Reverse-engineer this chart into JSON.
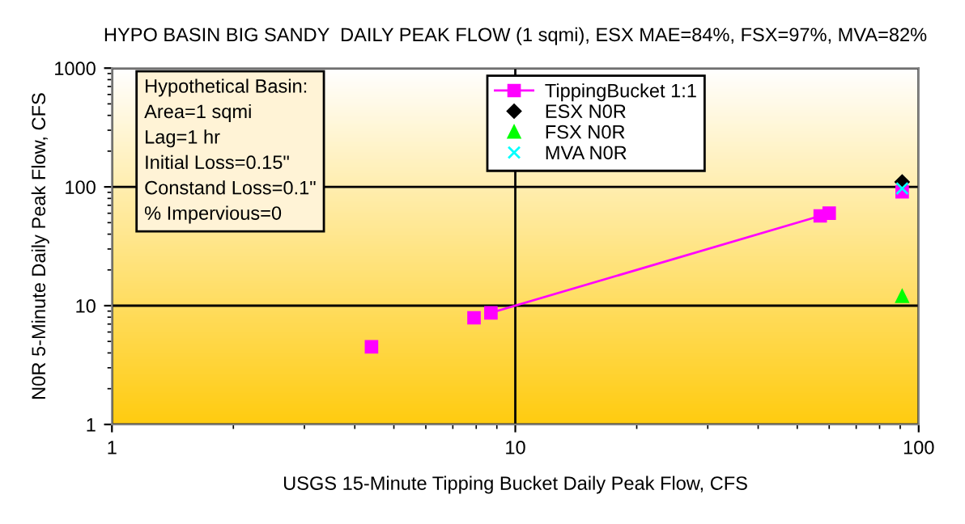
{
  "chart_data": {
    "type": "scatter",
    "title": "HYPO BASIN BIG SANDY  DAILY PEAK FLOW (1 sqmi), ESX MAE=84%, FSX=97%, MVA=82%",
    "xlabel": "USGS 15-Minute Tipping Bucket Daily Peak Flow, CFS",
    "ylabel": "N0R 5-Minute Daily Peak Flow, CFS",
    "annotations": [
      "Hypothetical Basin:\nArea=1 sqmi\nLag=1 hr\nInitial Loss=0.15\"\nConstand Loss=0.1\"\n% Impervious=0"
    ],
    "series": [
      {
        "name": "TippingBucket 1:1",
        "type": "line",
        "marker": "square",
        "color": "#ff00ff",
        "x": [
          8.7,
          57,
          60
        ],
        "values": [
          8.7,
          57,
          60
        ]
      },
      {
        "marker": "square",
        "color": "#ff00ff",
        "x": [
          4.4,
          7.9,
          91
        ],
        "values": [
          4.5,
          7.9,
          91
        ]
      },
      {
        "name": "ESX N0R",
        "marker": "diamond",
        "color": "#000000",
        "x": [
          91
        ],
        "values": [
          110
        ]
      },
      {
        "name": "FSX N0R",
        "marker": "triangle",
        "color": "#00ff00",
        "x": [
          91
        ],
        "values": [
          12
        ]
      },
      {
        "name": "MVA N0R",
        "marker": "cross",
        "color": "#00ffff",
        "x": [
          91
        ],
        "values": [
          97
        ]
      }
    ],
    "log": "xy",
    "xlim": [
      1,
      100
    ],
    "xticks": [
      1,
      10,
      100
    ],
    "ylim": [
      1,
      1000
    ],
    "yticks": [
      1,
      10,
      100,
      1000
    ],
    "grid": true,
    "legend": "top"
  }
}
